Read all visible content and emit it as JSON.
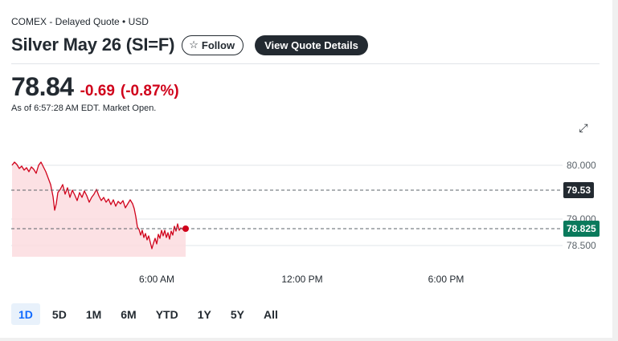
{
  "header": {
    "exchange": "COMEX - Delayed Quote • USD",
    "title": "Silver May 26 (SI=F)",
    "follow_label": "Follow",
    "view_quote_label": "View Quote Details"
  },
  "quote": {
    "price": "78.84",
    "change": "-0.69",
    "change_pct": "(-0.87%)",
    "as_of": "As of 6:57:28 AM EDT. Market Open."
  },
  "chart": {
    "y_ticks": [
      "80.000",
      "79.000",
      "78.500"
    ],
    "x_ticks": [
      "6:00 AM",
      "12:00 PM",
      "6:00 PM"
    ],
    "prev_close_label": "79.53",
    "current_label": "78.825",
    "colors": {
      "line": "#d0021b",
      "fill": "#fbdcdf",
      "current_badge": "#0a7a5c",
      "prev_badge": "#232a31"
    }
  },
  "ranges": [
    "1D",
    "5D",
    "1M",
    "6M",
    "YTD",
    "1Y",
    "5Y",
    "All"
  ],
  "active_range": "1D"
}
